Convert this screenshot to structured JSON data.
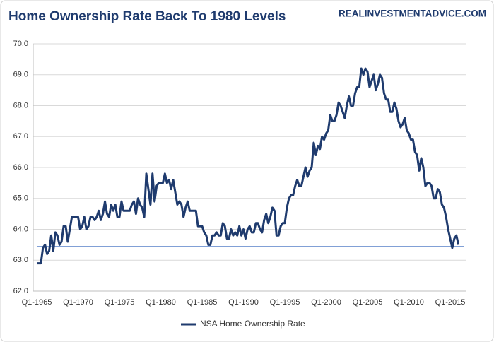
{
  "chart_data": {
    "type": "line",
    "title": "Home Ownership Rate Back To 1980 Levels",
    "source": "REALINVESTMENTADVICE.COM",
    "categories": [
      "Q1-1965",
      null,
      null,
      null,
      null,
      null,
      null,
      null,
      null,
      null,
      null,
      null,
      null,
      null,
      null,
      null,
      null,
      null,
      null,
      null,
      "Q1-1970",
      null,
      null,
      null,
      null,
      null,
      null,
      null,
      null,
      null,
      null,
      null,
      null,
      null,
      null,
      null,
      null,
      null,
      null,
      null,
      "Q1-1975",
      null,
      null,
      null,
      null,
      null,
      null,
      null,
      null,
      null,
      null,
      null,
      null,
      null,
      null,
      null,
      null,
      null,
      null,
      null,
      "Q1-1980",
      null,
      null,
      null,
      null,
      null,
      null,
      null,
      null,
      null,
      null,
      null,
      null,
      null,
      null,
      null,
      null,
      null,
      null,
      null,
      "Q1-1985",
      null,
      null,
      null,
      null,
      null,
      null,
      null,
      null,
      null,
      null,
      null,
      null,
      null,
      null,
      null,
      null,
      null,
      null,
      null,
      "Q1-1990",
      null,
      null,
      null,
      null,
      null,
      null,
      null,
      null,
      null,
      null,
      null,
      null,
      null,
      null,
      null,
      null,
      null,
      null,
      null,
      "Q1-1995",
      null,
      null,
      null,
      null,
      null,
      null,
      null,
      null,
      null,
      null,
      null,
      null,
      null,
      null,
      null,
      null,
      null,
      null,
      null,
      "Q1-2000",
      null,
      null,
      null,
      null,
      null,
      null,
      null,
      null,
      null,
      null,
      null,
      null,
      null,
      null,
      null,
      null,
      null,
      null,
      null,
      "Q1-2005",
      null,
      null,
      null,
      null,
      null,
      null,
      null,
      null,
      null,
      null,
      null,
      null,
      null,
      null,
      null,
      null,
      null,
      null,
      null,
      "Q1-2010",
      null,
      null,
      null,
      null,
      null,
      null,
      null,
      null,
      null,
      null,
      null,
      null,
      null,
      null,
      null,
      null,
      null,
      null,
      null,
      "Q1-2015",
      null,
      null,
      null,
      null
    ],
    "series": [
      {
        "name": "NSA Home Ownership Rate",
        "color": "#1f3b6e",
        "values": [
          62.9,
          62.9,
          62.9,
          63.4,
          63.5,
          63.2,
          63.3,
          63.8,
          63.3,
          63.9,
          63.8,
          63.5,
          63.6,
          64.1,
          64.1,
          63.6,
          64.0,
          64.4,
          64.4,
          64.4,
          64.4,
          64.0,
          64.1,
          64.4,
          64.0,
          64.1,
          64.4,
          64.4,
          64.3,
          64.4,
          64.6,
          64.3,
          64.5,
          64.9,
          64.5,
          64.4,
          64.8,
          64.6,
          64.8,
          64.4,
          64.4,
          64.9,
          64.6,
          64.6,
          64.6,
          64.6,
          64.8,
          64.9,
          64.5,
          65.0,
          64.8,
          64.7,
          64.4,
          65.8,
          65.3,
          64.8,
          65.8,
          64.9,
          65.4,
          65.5,
          65.5,
          65.5,
          65.8,
          65.5,
          65.6,
          65.3,
          65.6,
          65.2,
          64.8,
          64.9,
          64.8,
          64.4,
          64.7,
          64.9,
          64.6,
          64.6,
          64.6,
          64.6,
          64.1,
          64.1,
          64.1,
          63.9,
          63.8,
          63.5,
          63.5,
          63.8,
          63.8,
          63.9,
          63.8,
          63.8,
          64.2,
          64.1,
          63.7,
          63.7,
          64.0,
          63.8,
          63.9,
          63.8,
          64.1,
          63.8,
          64.0,
          63.7,
          64.0,
          64.1,
          63.9,
          63.9,
          64.2,
          64.2,
          64.0,
          63.9,
          64.3,
          64.5,
          64.2,
          64.4,
          64.7,
          64.6,
          63.8,
          63.8,
          64.1,
          64.2,
          64.2,
          64.7,
          65.0,
          65.1,
          65.1,
          65.4,
          65.6,
          65.4,
          65.4,
          65.7,
          66.0,
          65.7,
          65.9,
          66.0,
          66.8,
          66.4,
          66.7,
          66.6,
          67.0,
          66.9,
          67.1,
          67.2,
          67.7,
          67.5,
          67.5,
          67.7,
          68.1,
          68.0,
          67.8,
          67.6,
          68.0,
          68.3,
          68.0,
          68.0,
          68.4,
          68.6,
          68.6,
          69.2,
          69.0,
          69.2,
          69.1,
          68.6,
          68.8,
          69.0,
          68.5,
          68.7,
          69.0,
          68.9,
          68.4,
          68.2,
          68.2,
          67.8,
          67.8,
          68.1,
          67.9,
          67.5,
          67.3,
          67.4,
          67.6,
          67.2,
          67.1,
          66.9,
          66.9,
          66.5,
          66.4,
          65.9,
          66.3,
          66.0,
          65.4,
          65.5,
          65.5,
          65.4,
          65.0,
          65.0,
          65.3,
          65.2,
          64.8,
          64.7,
          64.4,
          64.0,
          63.7,
          63.4,
          63.7,
          63.8,
          63.5
        ]
      }
    ],
    "reference_line": {
      "value": 63.45,
      "color": "#6f93d0"
    },
    "ylim": [
      62,
      70
    ],
    "yticks": [
      {
        "value": 62,
        "label": "62.0"
      },
      {
        "value": 63,
        "label": "63.0"
      },
      {
        "value": 64,
        "label": "64.0"
      },
      {
        "value": 65,
        "label": "65.0"
      },
      {
        "value": 66,
        "label": "66.0"
      },
      {
        "value": 67,
        "label": "67.0"
      },
      {
        "value": 68,
        "label": "68.0"
      },
      {
        "value": 69,
        "label": "69.0"
      },
      {
        "value": 70,
        "label": "70.0"
      }
    ],
    "grid": true,
    "legend": "bottom"
  }
}
